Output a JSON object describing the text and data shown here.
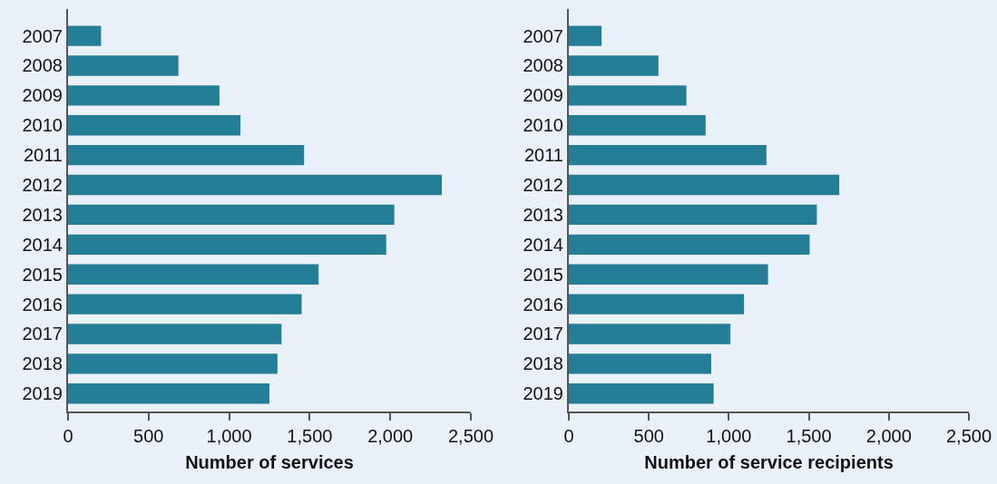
{
  "chart_data": [
    {
      "type": "bar",
      "orientation": "horizontal",
      "xlabel": "Number of services",
      "categories": [
        "2007",
        "2008",
        "2009",
        "2010",
        "2011",
        "2012",
        "2013",
        "2014",
        "2015",
        "2016",
        "2017",
        "2018",
        "2019"
      ],
      "values": [
        205,
        685,
        940,
        1070,
        1465,
        2320,
        2025,
        1975,
        1555,
        1450,
        1325,
        1300,
        1250
      ],
      "color": "#247e96",
      "xlim": [
        0,
        2500
      ],
      "xticks": [
        0,
        {
          "value": 500,
          "label": "500"
        },
        {
          "value": 1000,
          "label": "1,000"
        },
        {
          "value": 1500,
          "label": "1,500"
        },
        {
          "value": 2000,
          "label": "2,000"
        },
        {
          "value": 2500,
          "label": "2,500"
        }
      ],
      "grid": false
    },
    {
      "type": "bar",
      "orientation": "horizontal",
      "xlabel": "Number of service recipients",
      "categories": [
        "2007",
        "2008",
        "2009",
        "2010",
        "2011",
        "2012",
        "2013",
        "2014",
        "2015",
        "2016",
        "2017",
        "2018",
        "2019"
      ],
      "values": [
        205,
        560,
        735,
        855,
        1235,
        1690,
        1550,
        1505,
        1245,
        1095,
        1010,
        890,
        905
      ],
      "color": "#247e96",
      "xlim": [
        0,
        2500
      ],
      "xticks": [
        0,
        {
          "value": 500,
          "label": "500"
        },
        {
          "value": 1000,
          "label": "1,000"
        },
        {
          "value": 1500,
          "label": "1,500"
        },
        {
          "value": 2000,
          "label": "2,000"
        },
        {
          "value": 2500,
          "label": "2,500"
        }
      ],
      "grid": false
    }
  ]
}
